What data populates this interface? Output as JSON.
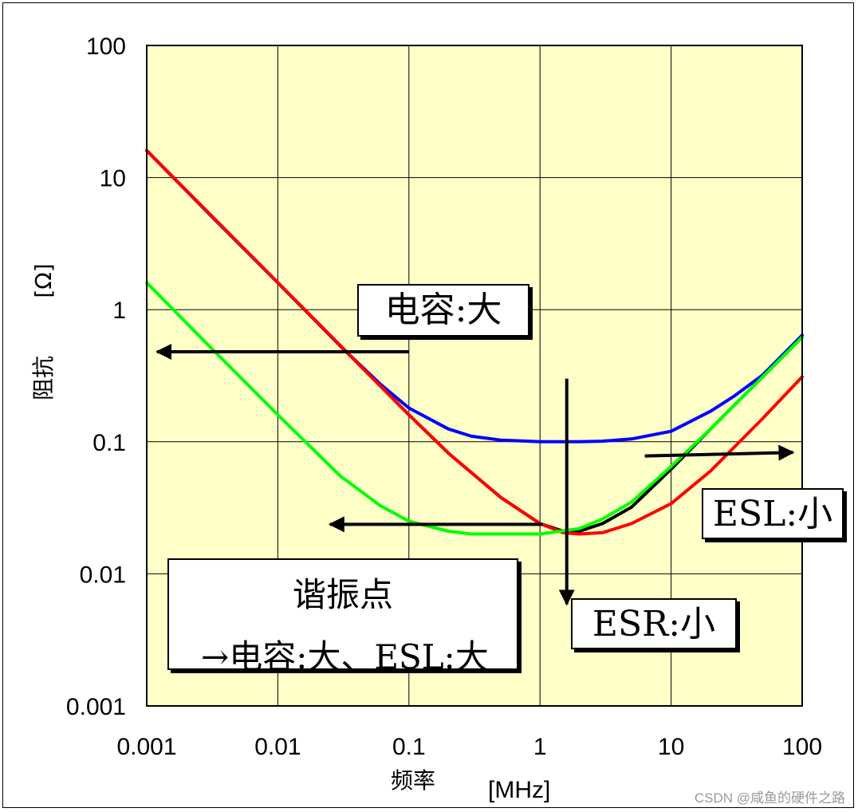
{
  "chart_data": {
    "type": "line",
    "xscale": "log",
    "yscale": "log",
    "xlim": [
      0.001,
      100
    ],
    "ylim": [
      0.001,
      100
    ],
    "xlabel": "频率",
    "xunit": "[MHz]",
    "ylabel": "阻抗",
    "yunit": "[Ω]",
    "xticks": [
      "0.001",
      "0.01",
      "0.1",
      "1",
      "10",
      "100"
    ],
    "yticks": [
      "100",
      "10",
      "1",
      "0.1",
      "0.01",
      "0.001"
    ],
    "grid": true,
    "background": "#ffffc8",
    "series": [
      {
        "color": "#0000ff",
        "x": [
          0.001,
          0.003,
          0.01,
          0.03,
          0.06,
          0.1,
          0.2,
          0.3,
          0.5,
          1,
          2,
          3,
          5,
          10,
          20,
          30,
          50,
          100
        ],
        "y": [
          16,
          5.3,
          1.6,
          0.53,
          0.275,
          0.18,
          0.125,
          0.11,
          0.103,
          0.1,
          0.1,
          0.101,
          0.105,
          0.12,
          0.17,
          0.22,
          0.32,
          0.64
        ]
      },
      {
        "color": "#000000",
        "x": [
          0.001,
          0.01,
          0.1,
          0.2,
          0.5,
          1,
          1.5,
          2,
          3,
          5,
          10,
          20,
          50,
          100
        ],
        "y": [
          16,
          1.6,
          0.16,
          0.082,
          0.038,
          0.024,
          0.021,
          0.021,
          0.024,
          0.032,
          0.062,
          0.125,
          0.31,
          0.62
        ]
      },
      {
        "color": "#ff0000",
        "x": [
          0.001,
          0.01,
          0.1,
          0.2,
          0.5,
          1,
          1.5,
          2,
          3,
          5,
          10,
          20,
          50,
          100
        ],
        "y": [
          16,
          1.6,
          0.16,
          0.082,
          0.038,
          0.024,
          0.0205,
          0.02,
          0.0205,
          0.024,
          0.034,
          0.06,
          0.15,
          0.31
        ]
      },
      {
        "color": "#00ff00",
        "x": [
          0.001,
          0.003,
          0.01,
          0.03,
          0.06,
          0.1,
          0.2,
          0.3,
          0.5,
          1,
          2,
          3,
          5,
          10,
          20,
          50,
          100
        ],
        "y": [
          1.6,
          0.53,
          0.16,
          0.055,
          0.033,
          0.025,
          0.021,
          0.02,
          0.02,
          0.02,
          0.022,
          0.026,
          0.035,
          0.065,
          0.125,
          0.31,
          0.62
        ]
      }
    ],
    "arrows": [
      {
        "x1": 0.1,
        "y1": 0.48,
        "x2": 0.0012,
        "y2": 0.48
      },
      {
        "x1": 1.05,
        "y1": 0.0237,
        "x2": 0.025,
        "y2": 0.0237
      },
      {
        "x1": 1.6,
        "y1": 0.3,
        "x2": 1.6,
        "y2": 0.0059
      },
      {
        "x1": 6.3,
        "y1": 0.078,
        "x2": 85,
        "y2": 0.083
      }
    ],
    "annotations": {
      "capacitance": "电容:大",
      "esl": "ESL:小",
      "esr": "ESR:小",
      "resonance_title": "谐振点",
      "resonance_note": "→电容:大、ESL:大"
    }
  },
  "watermark": "CSDN @咸鱼的硬件之路"
}
